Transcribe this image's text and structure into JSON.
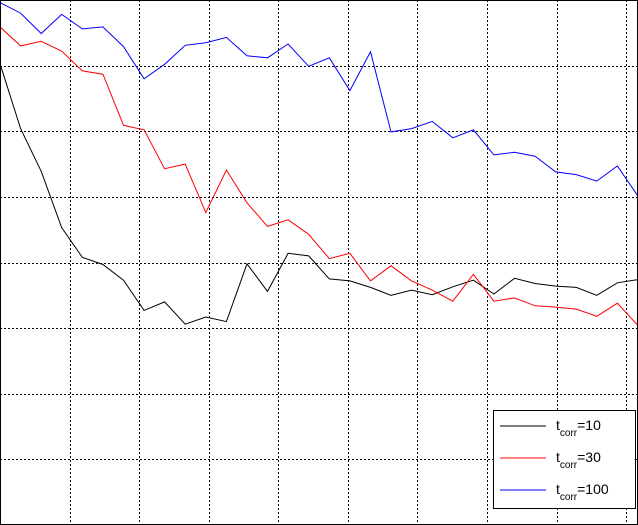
{
  "chart_data": {
    "type": "line",
    "title": "",
    "xlabel": "",
    "ylabel": "",
    "grid": true,
    "xlim": [
      0,
      31
    ],
    "ylim": [
      0,
      8
    ],
    "legend_placement": "bottom-right",
    "x": [
      0,
      1,
      2,
      3,
      4,
      5,
      6,
      7,
      8,
      9,
      10,
      11,
      12,
      13,
      14,
      15,
      16,
      17,
      18,
      19,
      20,
      21,
      22,
      23,
      24,
      25,
      26,
      27,
      28,
      29,
      30,
      31
    ],
    "series": [
      {
        "name": "t_corr=10",
        "legend": {
          "base": "t",
          "sub": "corr",
          "suffix": "=10"
        },
        "color": "#000000",
        "values": [
          7.03,
          6.04,
          5.39,
          4.53,
          4.08,
          3.97,
          3.73,
          3.27,
          3.4,
          3.06,
          3.17,
          3.1,
          3.98,
          3.56,
          4.14,
          4.1,
          3.75,
          3.72,
          3.62,
          3.5,
          3.58,
          3.51,
          3.63,
          3.73,
          3.52,
          3.76,
          3.68,
          3.64,
          3.62,
          3.5,
          3.69,
          3.74
        ]
      },
      {
        "name": "t_corr=30",
        "legend": {
          "base": "t",
          "sub": "corr",
          "suffix": "=30"
        },
        "color": "#ff0000",
        "values": [
          7.59,
          7.3,
          7.37,
          7.22,
          6.92,
          6.87,
          6.09,
          6.02,
          5.43,
          5.5,
          4.76,
          5.41,
          4.91,
          4.55,
          4.65,
          4.43,
          4.06,
          4.14,
          3.72,
          3.95,
          3.72,
          3.58,
          3.41,
          3.82,
          3.41,
          3.46,
          3.34,
          3.32,
          3.29,
          3.18,
          3.38,
          3.04
        ]
      },
      {
        "name": "t_corr=100",
        "legend": {
          "base": "t",
          "sub": "corr",
          "suffix": "=100"
        },
        "color": "#0000ff",
        "values": [
          7.96,
          7.8,
          7.49,
          7.78,
          7.56,
          7.59,
          7.29,
          6.8,
          7.02,
          7.31,
          7.35,
          7.43,
          7.15,
          7.12,
          7.33,
          6.99,
          7.12,
          6.62,
          7.21,
          5.99,
          6.04,
          6.15,
          5.9,
          6.02,
          5.64,
          5.68,
          5.62,
          5.38,
          5.34,
          5.24,
          5.47,
          5.01
        ]
      }
    ]
  }
}
